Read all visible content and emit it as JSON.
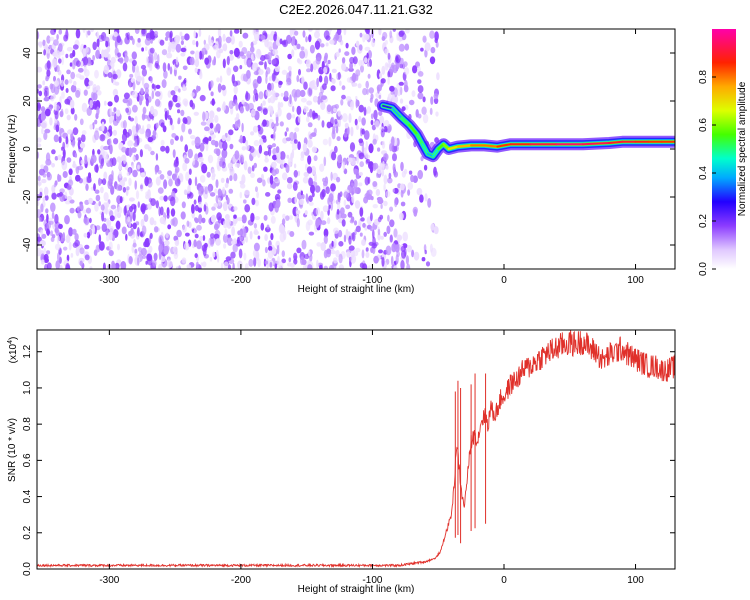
{
  "figure_title": "C2E2.2026.047.11.21.G32",
  "chart_data": [
    {
      "type": "heatmap",
      "title": "C2E2.2026.047.11.21.G32",
      "xlabel": "Height of straight line (km)",
      "ylabel": "Frequency (Hz)",
      "xlim": [
        -355,
        130
      ],
      "ylim": [
        -50,
        50
      ],
      "xticks": [
        -300,
        -200,
        -100,
        0,
        100
      ],
      "yticks": [
        -40,
        -20,
        0,
        20,
        40
      ],
      "colorbar": {
        "label": "Normalized spectral amplitude",
        "range": [
          0,
          1
        ],
        "ticks": [
          0.0,
          0.2,
          0.4,
          0.6,
          0.8
        ],
        "tick_labels": [
          "0.0",
          "0.2",
          "0.4",
          "0.6",
          "0.8"
        ],
        "colormap": [
          "#ffffff",
          "#e6d0ff",
          "#b27cff",
          "#6600dd",
          "#1100ff",
          "#00d4ff",
          "#00ff80",
          "#66ff00",
          "#ffff00",
          "#ff8800",
          "#ff0000",
          "#ff00aa"
        ]
      },
      "noise_region": {
        "x_range": [
          -355,
          -70
        ],
        "freq_range": [
          -50,
          50
        ],
        "amplitude": 0.12
      },
      "signal_trace": {
        "x": [
          -92,
          -85,
          -78,
          -72,
          -66,
          -62,
          -58,
          -54,
          -50,
          -46,
          -42,
          -35,
          -25,
          -15,
          -5,
          0,
          5,
          20,
          40,
          60,
          80,
          90,
          100,
          110,
          120,
          130
        ],
        "freq": [
          18,
          17,
          13,
          10,
          6,
          2,
          -2,
          -3,
          0,
          2,
          0,
          1,
          1.5,
          1.5,
          1,
          1.5,
          2,
          2,
          2,
          2,
          2.5,
          3,
          3,
          3,
          3,
          3
        ],
        "amplitude": [
          0.3,
          0.4,
          0.5,
          0.55,
          0.5,
          0.45,
          0.4,
          0.45,
          0.55,
          0.6,
          0.7,
          0.75,
          0.8,
          0.8,
          0.85,
          0.85,
          0.88,
          0.92,
          0.95,
          0.93,
          0.9,
          0.9,
          0.88,
          0.85,
          0.85,
          0.85
        ]
      }
    },
    {
      "type": "line",
      "xlabel": "Height of straight line (km)",
      "ylabel": "SNR (10 * v/v)",
      "y_multiplier": "(x10^4)",
      "y_multiplier_base": "(x10",
      "y_multiplier_exp": "4",
      "y_multiplier_close": ")",
      "xlim": [
        -355,
        130
      ],
      "ylim": [
        0,
        1.32
      ],
      "xticks": [
        -300,
        -200,
        -100,
        0,
        100
      ],
      "yticks": [
        0.0,
        0.2,
        0.4,
        0.6,
        0.8,
        1.0,
        1.2
      ],
      "ytick_labels": [
        "0.0",
        "0.2",
        "0.4",
        "0.6",
        "0.8",
        "1.0",
        "1.2"
      ],
      "series": [
        {
          "name": "SNR",
          "color": "#e0302a",
          "x": [
            -355,
            -300,
            -250,
            -200,
            -150,
            -100,
            -80,
            -70,
            -60,
            -52,
            -48,
            -45,
            -42,
            -40,
            -38,
            -36,
            -34,
            -32,
            -30,
            -28,
            -25,
            -22,
            -20,
            -18,
            -15,
            -12,
            -10,
            -8,
            -5,
            -2,
            0,
            5,
            10,
            15,
            20,
            25,
            30,
            35,
            40,
            45,
            50,
            55,
            60,
            65,
            70,
            75,
            80,
            85,
            90,
            95,
            100,
            105,
            110,
            115,
            120,
            125,
            130
          ],
          "y": [
            0.02,
            0.02,
            0.02,
            0.02,
            0.02,
            0.02,
            0.02,
            0.03,
            0.04,
            0.06,
            0.1,
            0.18,
            0.25,
            0.3,
            0.45,
            0.7,
            0.55,
            0.4,
            0.35,
            0.5,
            0.7,
            0.75,
            0.7,
            0.8,
            0.85,
            0.8,
            0.9,
            0.85,
            0.88,
            0.95,
            0.95,
            1.02,
            1.05,
            1.1,
            1.12,
            1.15,
            1.18,
            1.2,
            1.22,
            1.24,
            1.25,
            1.24,
            1.26,
            1.22,
            1.2,
            1.15,
            1.18,
            1.2,
            1.22,
            1.18,
            1.16,
            1.14,
            1.12,
            1.12,
            1.1,
            1.1,
            1.12
          ]
        }
      ],
      "spikes": [
        {
          "x": -37,
          "y": 0.98
        },
        {
          "x": -35,
          "y": 1.04
        },
        {
          "x": -33,
          "y": 1.0
        },
        {
          "x": -25,
          "y": 1.02
        },
        {
          "x": -22,
          "y": 1.08
        },
        {
          "x": -14,
          "y": 1.08
        }
      ]
    }
  ]
}
